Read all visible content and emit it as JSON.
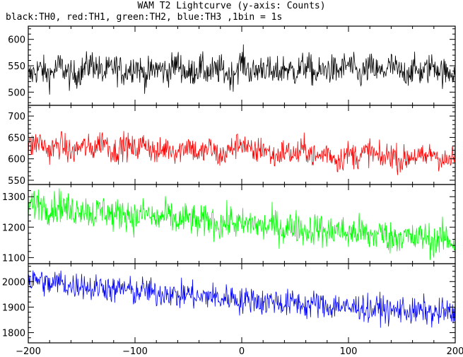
{
  "title": "WAM T2 Lightcurve (y-axis: Counts)",
  "subtitle": "black:TH0, red:TH1, green:TH2, blue:TH3 ,1bin = 1s",
  "chart_data": {
    "type": "line",
    "xlim": [
      -200,
      200
    ],
    "x_ticks": [
      -200,
      -100,
      0,
      100,
      200
    ],
    "x_tick_labels": [
      "−200",
      "−100",
      "0",
      "100",
      "200"
    ],
    "xlabel": "",
    "panels": [
      {
        "name": "TH0",
        "color": "#000000",
        "ylim": [
          475,
          625
        ],
        "y_ticks": [
          500,
          550,
          600
        ],
        "ylabel": "",
        "points": [
          [
            -200,
            528
          ],
          [
            -190,
            545
          ],
          [
            -180,
            532
          ],
          [
            -170,
            551
          ],
          [
            -160,
            529
          ],
          [
            -150,
            540
          ],
          [
            -140,
            556
          ],
          [
            -130,
            534
          ],
          [
            -120,
            548
          ],
          [
            -110,
            537
          ],
          [
            -100,
            552
          ],
          [
            -90,
            531
          ],
          [
            -80,
            546
          ],
          [
            -70,
            538
          ],
          [
            -60,
            555
          ],
          [
            -50,
            533
          ],
          [
            -40,
            547
          ],
          [
            -30,
            536
          ],
          [
            -20,
            544
          ],
          [
            -10,
            530
          ],
          [
            0,
            558
          ],
          [
            10,
            535
          ],
          [
            20,
            549
          ],
          [
            30,
            532
          ],
          [
            40,
            546
          ],
          [
            50,
            538
          ],
          [
            60,
            551
          ],
          [
            70,
            533
          ],
          [
            80,
            545
          ],
          [
            90,
            539
          ],
          [
            100,
            553
          ],
          [
            110,
            531
          ],
          [
            120,
            547
          ],
          [
            130,
            536
          ],
          [
            140,
            550
          ],
          [
            150,
            534
          ],
          [
            160,
            543
          ],
          [
            170,
            537
          ],
          [
            180,
            552
          ],
          [
            190,
            535
          ],
          [
            200,
            541
          ]
        ]
      },
      {
        "name": "TH1",
        "color": "#ff0000",
        "ylim": [
          540,
          725
        ],
        "y_ticks": [
          550,
          600,
          650,
          700
        ],
        "ylabel": "",
        "points": [
          [
            -200,
            625
          ],
          [
            -190,
            641
          ],
          [
            -180,
            618
          ],
          [
            -170,
            636
          ],
          [
            -160,
            612
          ],
          [
            -150,
            630
          ],
          [
            -140,
            622
          ],
          [
            -130,
            645
          ],
          [
            -120,
            615
          ],
          [
            -110,
            633
          ],
          [
            -100,
            620
          ],
          [
            -90,
            638
          ],
          [
            -80,
            610
          ],
          [
            -70,
            628
          ],
          [
            -60,
            616
          ],
          [
            -50,
            635
          ],
          [
            -40,
            609
          ],
          [
            -30,
            626
          ],
          [
            -20,
            604
          ],
          [
            -10,
            622
          ],
          [
            0,
            640
          ],
          [
            10,
            611
          ],
          [
            20,
            627
          ],
          [
            30,
            603
          ],
          [
            40,
            619
          ],
          [
            50,
            608
          ],
          [
            60,
            624
          ],
          [
            70,
            601
          ],
          [
            80,
            617
          ],
          [
            90,
            596
          ],
          [
            100,
            613
          ],
          [
            110,
            605
          ],
          [
            120,
            620
          ],
          [
            130,
            598
          ],
          [
            140,
            612
          ],
          [
            150,
            594
          ],
          [
            160,
            609
          ],
          [
            170,
            600
          ],
          [
            180,
            615
          ],
          [
            190,
            592
          ],
          [
            200,
            603
          ]
        ]
      },
      {
        "name": "TH2",
        "color": "#00ff00",
        "ylim": [
          1080,
          1340
        ],
        "y_ticks": [
          1100,
          1200,
          1300
        ],
        "ylabel": "",
        "points": [
          [
            -200,
            1268
          ],
          [
            -190,
            1281
          ],
          [
            -180,
            1259
          ],
          [
            -170,
            1274
          ],
          [
            -160,
            1249
          ],
          [
            -150,
            1266
          ],
          [
            -140,
            1243
          ],
          [
            -130,
            1258
          ],
          [
            -120,
            1236
          ],
          [
            -110,
            1251
          ],
          [
            -100,
            1229
          ],
          [
            -90,
            1246
          ],
          [
            -80,
            1224
          ],
          [
            -70,
            1239
          ],
          [
            -60,
            1217
          ],
          [
            -50,
            1232
          ],
          [
            -40,
            1211
          ],
          [
            -30,
            1226
          ],
          [
            -20,
            1206
          ],
          [
            -10,
            1220
          ],
          [
            0,
            1203
          ],
          [
            10,
            1216
          ],
          [
            20,
            1197
          ],
          [
            30,
            1210
          ],
          [
            40,
            1191
          ],
          [
            50,
            1205
          ],
          [
            60,
            1186
          ],
          [
            70,
            1199
          ],
          [
            80,
            1180
          ],
          [
            90,
            1194
          ],
          [
            100,
            1175
          ],
          [
            110,
            1189
          ],
          [
            120,
            1168
          ],
          [
            130,
            1183
          ],
          [
            140,
            1163
          ],
          [
            150,
            1177
          ],
          [
            160,
            1157
          ],
          [
            170,
            1171
          ],
          [
            180,
            1152
          ],
          [
            190,
            1165
          ],
          [
            200,
            1146
          ]
        ]
      },
      {
        "name": "TH3",
        "color": "#0000ff",
        "ylim": [
          1760,
          2070
        ],
        "y_ticks": [
          1800,
          1900,
          2000
        ],
        "ylabel": "",
        "points": [
          [
            -200,
            1998
          ],
          [
            -190,
            2009
          ],
          [
            -180,
            1986
          ],
          [
            -170,
            2001
          ],
          [
            -160,
            1978
          ],
          [
            -150,
            1992
          ],
          [
            -140,
            1969
          ],
          [
            -130,
            1985
          ],
          [
            -120,
            1962
          ],
          [
            -110,
            1976
          ],
          [
            -100,
            1955
          ],
          [
            -90,
            1970
          ],
          [
            -80,
            1948
          ],
          [
            -70,
            1962
          ],
          [
            -60,
            1941
          ],
          [
            -50,
            1955
          ],
          [
            -40,
            1934
          ],
          [
            -30,
            1948
          ],
          [
            -20,
            1928
          ],
          [
            -10,
            1942
          ],
          [
            0,
            1921
          ],
          [
            10,
            1935
          ],
          [
            20,
            1915
          ],
          [
            30,
            1929
          ],
          [
            40,
            1909
          ],
          [
            50,
            1922
          ],
          [
            60,
            1903
          ],
          [
            70,
            1916
          ],
          [
            80,
            1897
          ],
          [
            90,
            1910
          ],
          [
            100,
            1892
          ],
          [
            110,
            1905
          ],
          [
            120,
            1887
          ],
          [
            130,
            1899
          ],
          [
            140,
            1882
          ],
          [
            150,
            1894
          ],
          [
            160,
            1877
          ],
          [
            170,
            1889
          ],
          [
            180,
            1872
          ],
          [
            190,
            1884
          ],
          [
            200,
            1866
          ]
        ]
      }
    ]
  }
}
